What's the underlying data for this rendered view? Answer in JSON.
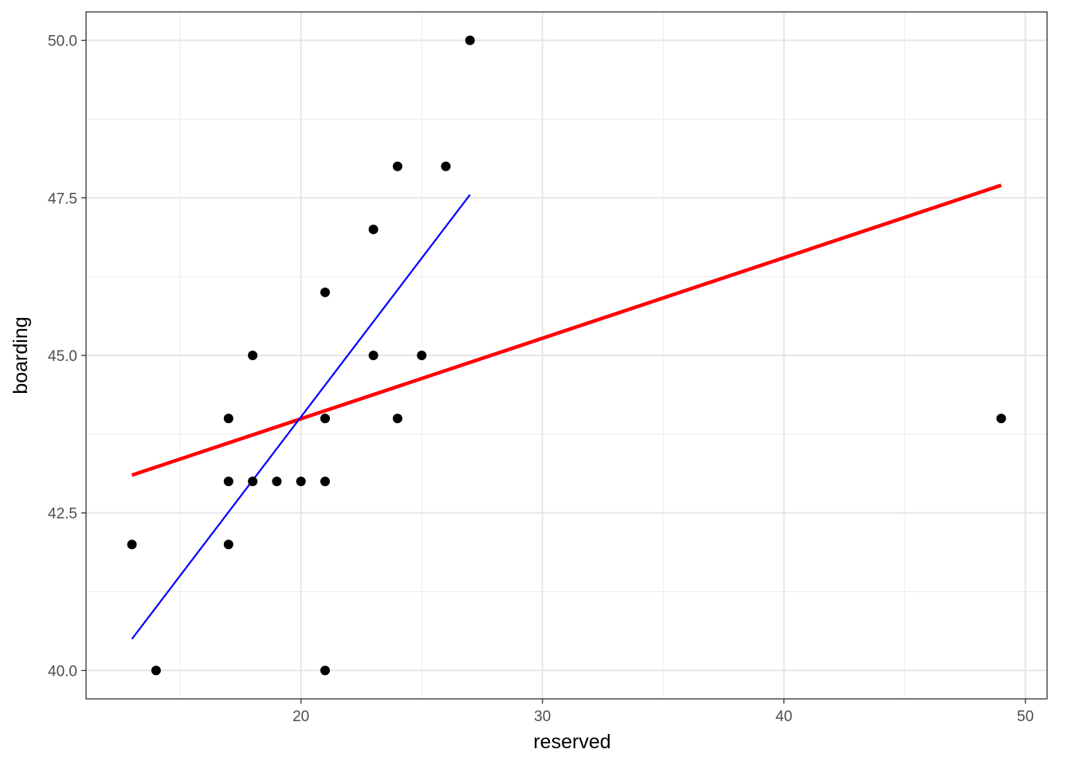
{
  "chart_data": {
    "type": "scatter",
    "xlabel": "reserved",
    "ylabel": "boarding",
    "xlim": [
      11.1,
      50.9
    ],
    "ylim": [
      39.55,
      50.45
    ],
    "x_ticks": [
      20,
      30,
      40,
      50
    ],
    "x_tick_labels": [
      "20",
      "30",
      "40",
      "50"
    ],
    "x_minor_ticks": [
      15,
      25,
      35,
      45
    ],
    "y_ticks": [
      40.0,
      42.5,
      45.0,
      47.5,
      50.0
    ],
    "y_tick_labels": [
      "40.0",
      "42.5",
      "45.0",
      "47.5",
      "50.0"
    ],
    "y_minor_ticks": [
      41.25,
      43.75,
      46.25,
      48.75
    ],
    "grid": true,
    "points": [
      {
        "x": 13,
        "y": 42
      },
      {
        "x": 14,
        "y": 40
      },
      {
        "x": 17,
        "y": 44
      },
      {
        "x": 17,
        "y": 43
      },
      {
        "x": 17,
        "y": 42
      },
      {
        "x": 18,
        "y": 45
      },
      {
        "x": 18,
        "y": 43
      },
      {
        "x": 19,
        "y": 43
      },
      {
        "x": 20,
        "y": 43
      },
      {
        "x": 21,
        "y": 46
      },
      {
        "x": 21,
        "y": 44
      },
      {
        "x": 21,
        "y": 43
      },
      {
        "x": 21,
        "y": 40
      },
      {
        "x": 23,
        "y": 47
      },
      {
        "x": 23,
        "y": 45
      },
      {
        "x": 24,
        "y": 48
      },
      {
        "x": 24,
        "y": 44
      },
      {
        "x": 25,
        "y": 45
      },
      {
        "x": 26,
        "y": 48
      },
      {
        "x": 27,
        "y": 50
      },
      {
        "x": 49,
        "y": 44
      }
    ],
    "lines": [
      {
        "color": "#ff0000",
        "width": 4.5,
        "x": [
          13,
          49
        ],
        "y": [
          43.1,
          47.7
        ]
      },
      {
        "color": "#0000ff",
        "width": 2.2,
        "x": [
          13,
          27
        ],
        "y": [
          40.5,
          47.55
        ]
      }
    ],
    "point_color": "#000000"
  }
}
